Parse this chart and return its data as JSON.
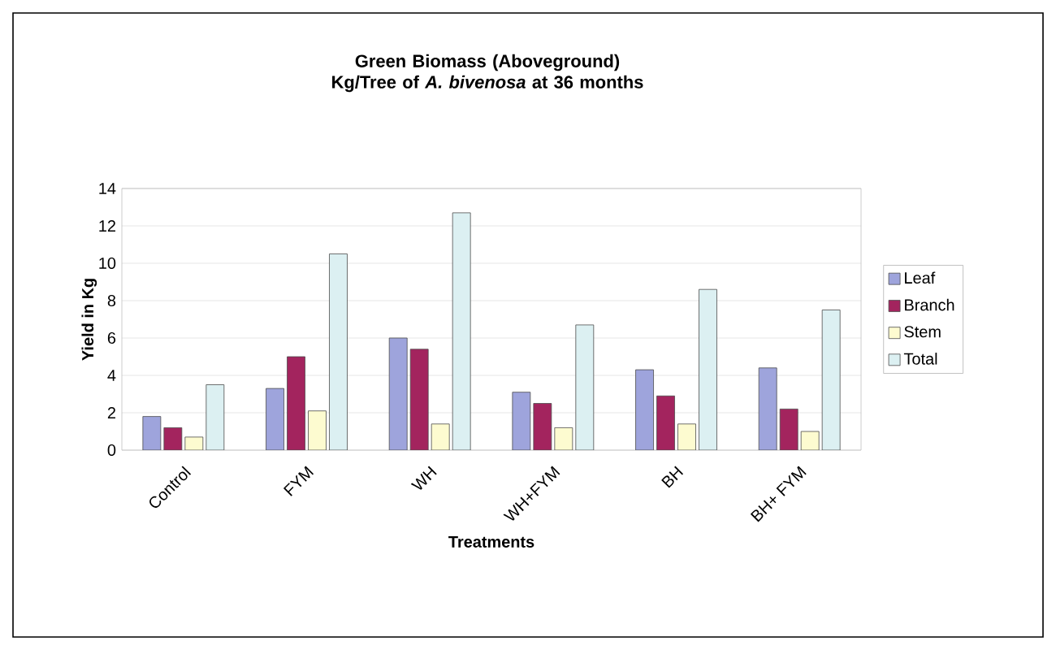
{
  "chart_data": {
    "type": "bar",
    "title": "Green Biomass (Aboveground) Kg/Tree of *A. bivenosa* at 36 months",
    "xlabel": "Treatments",
    "ylabel": "Yield in Kg",
    "categories": [
      "Control",
      "FYM",
      "WH",
      "WH+FYM",
      "BH",
      "BH+ FYM"
    ],
    "series": [
      {
        "name": "Leaf",
        "color": "#9ea4dc",
        "values": [
          1.8,
          3.3,
          6.0,
          3.1,
          4.3,
          4.4
        ]
      },
      {
        "name": "Branch",
        "color": "#a3245e",
        "values": [
          1.2,
          5.0,
          5.4,
          2.5,
          2.9,
          2.2
        ]
      },
      {
        "name": "Stem",
        "color": "#fdfbd0",
        "values": [
          0.7,
          2.1,
          1.4,
          1.2,
          1.4,
          1.0
        ]
      },
      {
        "name": "Total",
        "color": "#dcf0f2",
        "values": [
          3.5,
          10.5,
          12.7,
          6.7,
          8.6,
          7.5
        ]
      }
    ],
    "ylim": [
      0,
      14
    ],
    "yticks": [
      0,
      2,
      4,
      6,
      8,
      10,
      12,
      14
    ],
    "grid": "y",
    "legend": "right"
  }
}
